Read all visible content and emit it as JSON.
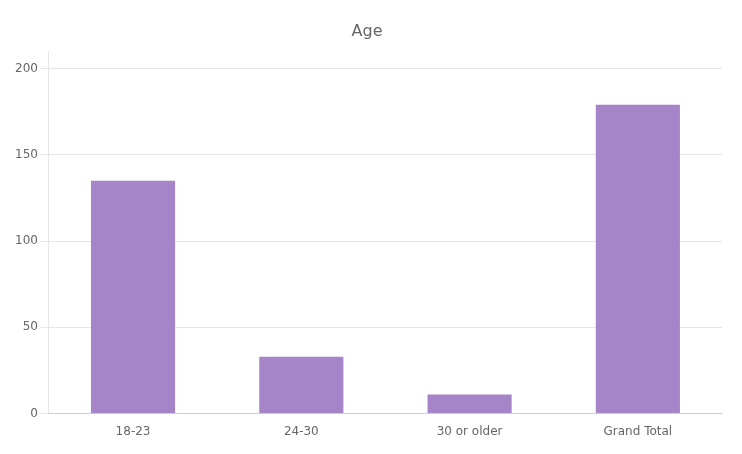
{
  "chart_data": {
    "type": "bar",
    "title": "Age",
    "categories": [
      "18-23",
      "24-30",
      "30 or older",
      "Grand Total"
    ],
    "values": [
      135,
      33,
      11,
      179
    ],
    "color": "#a585c8",
    "ylim": [
      0,
      210
    ],
    "yticks": [
      0,
      50,
      100,
      150,
      200
    ],
    "grid": true
  }
}
